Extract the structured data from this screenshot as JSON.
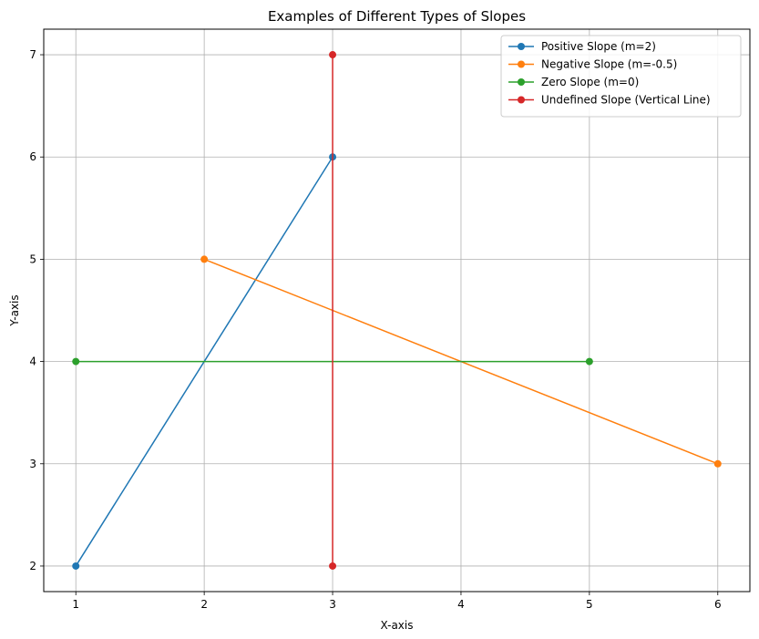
{
  "chart_data": {
    "type": "line",
    "title": "Examples of Different Types of Slopes",
    "xlabel": "X-axis",
    "ylabel": "Y-axis",
    "xlim": [
      0.75,
      6.25
    ],
    "ylim": [
      1.75,
      7.25
    ],
    "xticks": [
      1,
      2,
      3,
      4,
      5,
      6
    ],
    "yticks": [
      2,
      3,
      4,
      5,
      6,
      7
    ],
    "grid": true,
    "legend_position": "top-right",
    "series": [
      {
        "name": "Positive Slope (m=2)",
        "color": "#1f77b4",
        "x": [
          1,
          3
        ],
        "y": [
          2,
          6
        ]
      },
      {
        "name": "Negative Slope (m=-0.5)",
        "color": "#ff7f0e",
        "x": [
          2,
          6
        ],
        "y": [
          5,
          3
        ]
      },
      {
        "name": "Zero Slope (m=0)",
        "color": "#2ca02c",
        "x": [
          1,
          5
        ],
        "y": [
          4,
          4
        ]
      },
      {
        "name": "Undefined Slope (Vertical Line)",
        "color": "#d62728",
        "x": [
          3,
          3
        ],
        "y": [
          2,
          7
        ]
      }
    ]
  }
}
